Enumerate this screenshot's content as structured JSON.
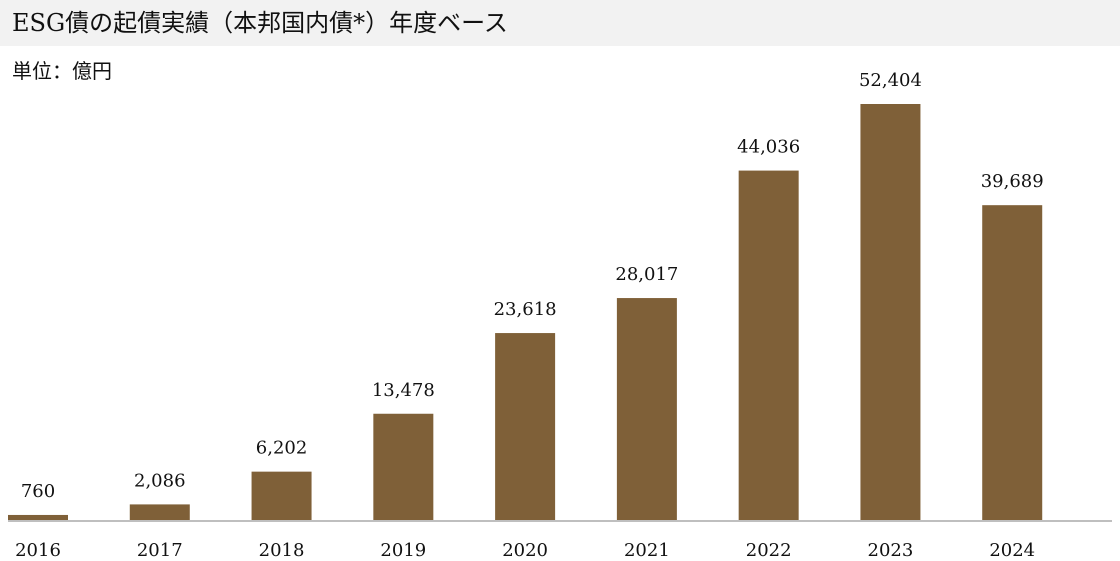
{
  "header": {
    "title": "ESG債の起債実績（本邦国内債*）年度ベース",
    "unit_label": "単位：億円"
  },
  "colors": {
    "bar": "#7f6038",
    "title_background": "#f2f2f2",
    "axis": "#bfbfbf"
  },
  "chart_data": {
    "type": "bar",
    "title": "ESG債の起債実績（本邦国内債*）年度ベース",
    "ylabel": "単位：億円",
    "xlabel": "",
    "categories": [
      "2016",
      "2017",
      "2018",
      "2019",
      "2020",
      "2021",
      "2022",
      "2023",
      "2024"
    ],
    "values": [
      760,
      2086,
      6202,
      13478,
      23618,
      28017,
      44036,
      52404,
      39689
    ],
    "value_labels": [
      "760",
      "2,086",
      "6,202",
      "13,478",
      "23,618",
      "28,017",
      "44,036",
      "52,404",
      "39,689"
    ],
    "ylim": [
      0,
      52404
    ],
    "grid": false,
    "legend": "none"
  }
}
